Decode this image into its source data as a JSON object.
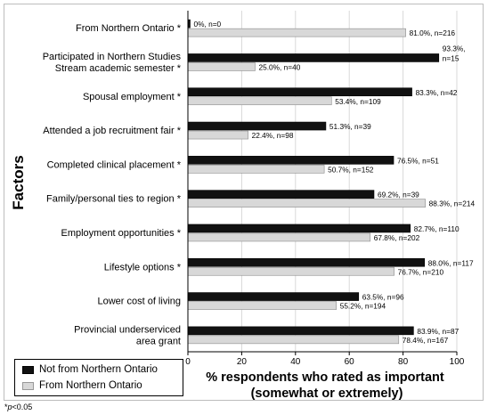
{
  "chart_data": {
    "type": "bar",
    "orientation": "horizontal",
    "categories": [
      "From Northern Ontario *",
      "Participated in Northern Studies Stream academic semester *",
      "Spousal employment *",
      "Attended a job recruitment fair *",
      "Completed clinical placement *",
      "Family/personal ties to region *",
      "Employment opportunities *",
      "Lifestyle options *",
      "Lower cost of living",
      "Provincial underserviced area grant"
    ],
    "category_lines": [
      [
        "From Northern Ontario *"
      ],
      [
        "Participated in Northern Studies",
        "Stream academic semester *"
      ],
      [
        "Spousal employment *"
      ],
      [
        "Attended a job recruitment fair *"
      ],
      [
        "Completed clinical placement *"
      ],
      [
        "Family/personal ties to region *"
      ],
      [
        "Employment opportunities *"
      ],
      [
        "Lifestyle options *"
      ],
      [
        "Lower cost of living"
      ],
      [
        "Provincial underserviced",
        "area grant"
      ]
    ],
    "series": [
      {
        "name": "Not from Northern Ontario",
        "color": "#111111",
        "values": [
          0,
          93.3,
          83.3,
          51.3,
          76.5,
          69.2,
          82.7,
          88.0,
          63.5,
          83.9
        ],
        "labels": [
          "0%, n=0",
          "93.3%, n=15",
          "83.3%, n=42",
          "51.3%, n=39",
          "76.5%, n=51",
          "69.2%, n=39",
          "82.7%, n=110",
          "88.0%, n=117",
          "63.5%, n=96",
          "83.9%, n=87"
        ]
      },
      {
        "name": "From Northern Ontario",
        "color": "#d8d8d8",
        "values": [
          81.0,
          25.0,
          53.4,
          22.4,
          50.7,
          88.3,
          67.8,
          76.7,
          55.2,
          78.4
        ],
        "labels": [
          "81.0%, n=216",
          "25.0%, n=40",
          "53.4%, n=109",
          "22.4%, n=98",
          "50.7%, n=152",
          "88.3%, n=214",
          "67.8%, n=202",
          "76.7%, n=210",
          "55.2%, n=194",
          "78.4%, n=167"
        ]
      }
    ],
    "xlabel_lines": [
      "% respondents who rated as important",
      "(somewhat or extremely)"
    ],
    "ylabel": "Factors",
    "xlim": [
      0,
      100
    ],
    "xticks": [
      0,
      20,
      40,
      60,
      80,
      100
    ],
    "grid": true,
    "legend_position": "bottom-left"
  },
  "legend": {
    "not_from": "Not from Northern Ontario",
    "from": "From Northern Ontario"
  },
  "footnote": {
    "prefix": "*",
    "p": "p",
    "suffix": "<0.05"
  }
}
